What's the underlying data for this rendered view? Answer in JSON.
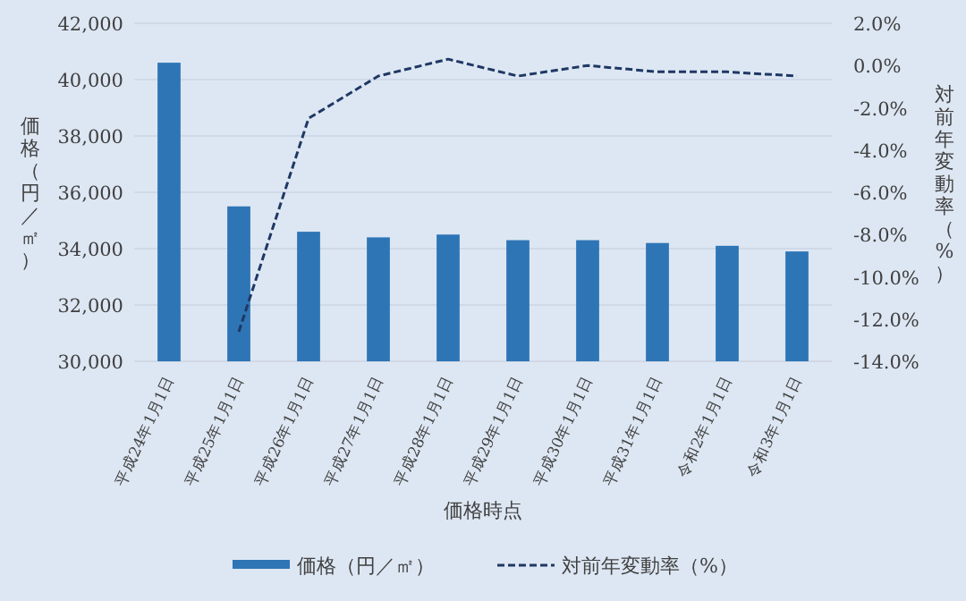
{
  "chart_data": {
    "type": "bar",
    "xlabel": "価格時点",
    "ylabel": "価格（円／㎡）",
    "y2label": "対前年変動率（%）",
    "categories": [
      "平成24年1月1日",
      "平成25年1月1日",
      "平成26年1月1日",
      "平成27年1月1日",
      "平成28年1月1日",
      "平成29年1月1日",
      "平成30年1月1日",
      "平成31年1月1日",
      "令和2年1月1日",
      "令和3年1月1日"
    ],
    "series": [
      {
        "name": "価格（円／㎡）",
        "color": "#2e75b6",
        "values": [
          40600,
          35500,
          34600,
          34400,
          34500,
          34300,
          34300,
          34200,
          34100,
          33900
        ]
      },
      {
        "name": "対前年変動率（%）",
        "type": "line",
        "axis": "y2",
        "line_style": "dashed",
        "color": "#1f3864",
        "values": [
          null,
          -12.6,
          -2.5,
          -0.5,
          0.3,
          -0.5,
          0.0,
          -0.3,
          -0.3,
          -0.5
        ]
      }
    ],
    "ylim": [
      30000,
      42000
    ],
    "yticks": [
      {
        "value": 30000,
        "label": "30,000"
      },
      {
        "value": 32000,
        "label": "32,000"
      },
      {
        "value": 34000,
        "label": "34,000"
      },
      {
        "value": 36000,
        "label": "36,000"
      },
      {
        "value": 38000,
        "label": "38,000"
      },
      {
        "value": 40000,
        "label": "40,000"
      },
      {
        "value": 42000,
        "label": "42,000"
      }
    ],
    "y2lim": [
      -14,
      2
    ],
    "y2ticks": [
      {
        "value": -14,
        "label": "-14.0%"
      },
      {
        "value": -12,
        "label": "-12.0%"
      },
      {
        "value": -10,
        "label": "-10.0%"
      },
      {
        "value": -8,
        "label": "-8.0%"
      },
      {
        "value": -6,
        "label": "-6.0%"
      },
      {
        "value": -4,
        "label": "-4.0%"
      },
      {
        "value": -2,
        "label": "-2.0%"
      },
      {
        "value": 0,
        "label": "0.0%"
      },
      {
        "value": 2,
        "label": "2.0%"
      }
    ],
    "grid": "y",
    "legend": "bottom"
  }
}
